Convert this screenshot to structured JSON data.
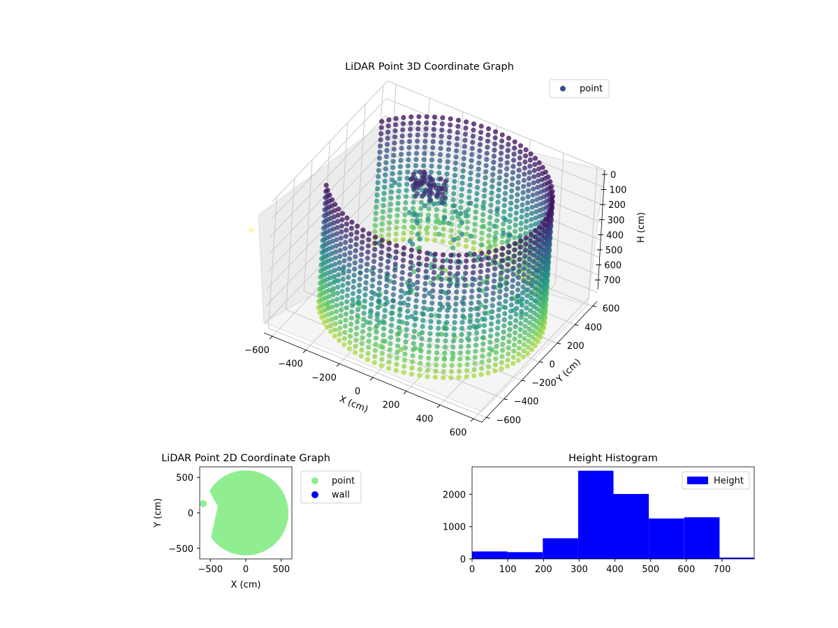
{
  "chart_data": [
    {
      "type": "scatter",
      "projection": "3d",
      "title": "LiDAR Point 3D Coordinate Graph",
      "xlabel": "X (cm)",
      "ylabel": "Y (cm)",
      "zlabel": "H (cm)",
      "xticks": [
        "−600",
        "−400",
        "−200",
        "0",
        "200",
        "400",
        "600"
      ],
      "yticks": [
        "600",
        "400",
        "200",
        "0",
        "−200",
        "−400",
        "−600"
      ],
      "zticks": [
        "0",
        "100",
        "200",
        "300",
        "400",
        "500",
        "600",
        "700"
      ],
      "xlim": [
        -650,
        650
      ],
      "ylim": [
        -650,
        650
      ],
      "zlim": [
        750,
        0
      ],
      "zaxis_inverted": true,
      "grid": true,
      "legend": {
        "position": "top-right",
        "entries": [
          {
            "label": "point",
            "color": "#3b4d8b"
          }
        ]
      },
      "colormap": "viridis",
      "series": [
        {
          "name": "point",
          "shape": "cylindrical wall",
          "radius_cm": 600,
          "height_range_cm": [
            0,
            700
          ],
          "opening_angle_range_deg": [
            150,
            215
          ]
        },
        {
          "name": "point",
          "shape": "interior cluster",
          "center_cm": [
            -100,
            100
          ],
          "height_range_cm": [
            60,
            150
          ]
        }
      ]
    },
    {
      "type": "scatter",
      "title": "LiDAR Point 2D Coordinate Graph",
      "xlabel": "X (cm)",
      "ylabel": "Y (cm)",
      "xticks": [
        "−500",
        "0",
        "500"
      ],
      "yticks": [
        "500",
        "0",
        "−500"
      ],
      "xlim": [
        -650,
        650
      ],
      "ylim": [
        -650,
        650
      ],
      "legend": {
        "position": "outside-right",
        "entries": [
          {
            "label": "point",
            "color": "#90ee90"
          },
          {
            "label": "wall",
            "color": "#0000ff"
          }
        ]
      },
      "series": [
        {
          "name": "point",
          "color": "#90ee90",
          "shape": "filled disk",
          "radius_cm": 600,
          "opening_angle_range_deg": [
            150,
            215
          ]
        }
      ]
    },
    {
      "type": "bar",
      "title": "Height Histogram",
      "xlabel": "",
      "ylabel": "",
      "xticks": [
        "0",
        "100",
        "200",
        "300",
        "400",
        "500",
        "600",
        "700"
      ],
      "yticks": [
        "0",
        "1000",
        "2000"
      ],
      "xlim": [
        0,
        790
      ],
      "ylim": [
        0,
        2850
      ],
      "legend": {
        "position": "top-right",
        "entries": [
          {
            "label": "Height",
            "color": "#0000ff"
          }
        ]
      },
      "bin_edges": [
        0,
        99,
        198,
        297,
        396,
        495,
        594,
        693,
        792
      ],
      "values": [
        230,
        210,
        640,
        2730,
        2010,
        1250,
        1290,
        40
      ],
      "color": "#0000ff"
    }
  ]
}
